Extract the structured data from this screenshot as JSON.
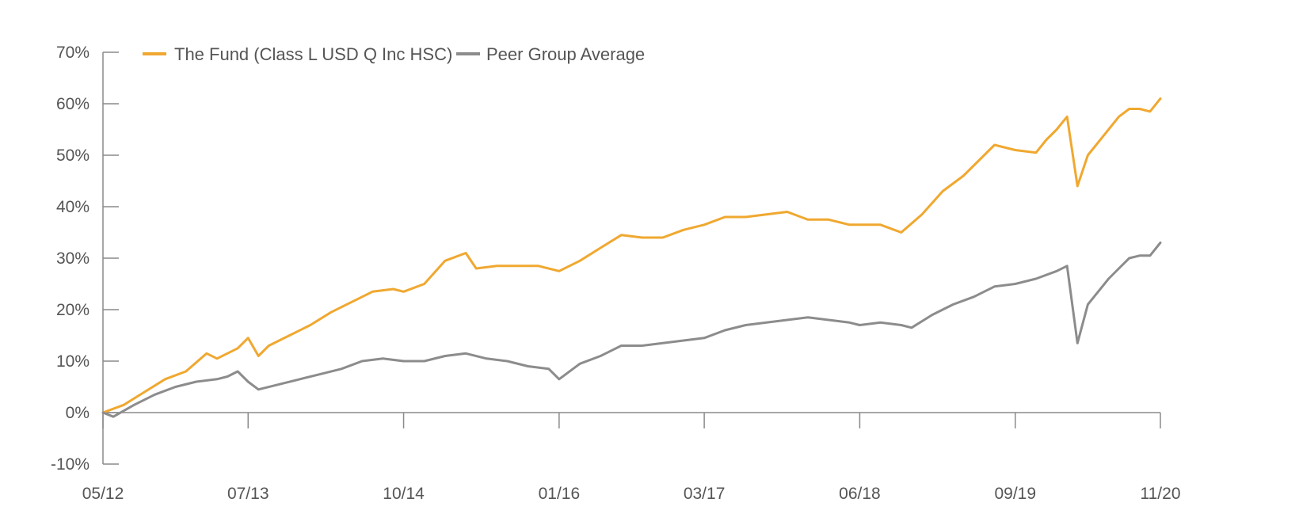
{
  "chart_data": {
    "type": "line",
    "title": "",
    "xlabel": "",
    "ylabel": "",
    "x_range": [
      "05/12",
      "11/20"
    ],
    "ylim": [
      -10,
      70
    ],
    "y_unit": "%",
    "y_ticks": [
      70,
      60,
      50,
      40,
      30,
      20,
      10,
      0,
      -10
    ],
    "y_tick_labels": [
      "70%",
      "60%",
      "50%",
      "40%",
      "30%",
      "20%",
      "10%",
      "0%",
      "-10%"
    ],
    "x_ticks": [
      "05/12",
      "07/13",
      "10/14",
      "01/16",
      "03/17",
      "06/18",
      "09/19",
      "11/20"
    ],
    "grid": false,
    "legend_position": "top-left",
    "series": [
      {
        "name": "The Fund (Class L USD Q Inc HSC)",
        "color": "#f0a830",
        "points": [
          [
            "05/12",
            0
          ],
          [
            "07/12",
            1.5
          ],
          [
            "09/12",
            4
          ],
          [
            "11/12",
            6.5
          ],
          [
            "01/13",
            8
          ],
          [
            "03/13",
            11.5
          ],
          [
            "04/13",
            10.5
          ],
          [
            "06/13",
            12.5
          ],
          [
            "07/13",
            14.5
          ],
          [
            "08/13",
            11
          ],
          [
            "09/13",
            13
          ],
          [
            "11/13",
            15
          ],
          [
            "01/14",
            17
          ],
          [
            "03/14",
            19.5
          ],
          [
            "05/14",
            21.5
          ],
          [
            "07/14",
            23.5
          ],
          [
            "09/14",
            24
          ],
          [
            "10/14",
            23.5
          ],
          [
            "12/14",
            25
          ],
          [
            "02/15",
            29.5
          ],
          [
            "04/15",
            31
          ],
          [
            "05/15",
            28
          ],
          [
            "07/15",
            28.5
          ],
          [
            "09/15",
            28.5
          ],
          [
            "11/15",
            28.5
          ],
          [
            "01/16",
            27.5
          ],
          [
            "03/16",
            29.5
          ],
          [
            "05/16",
            32
          ],
          [
            "07/16",
            34.5
          ],
          [
            "09/16",
            34
          ],
          [
            "11/16",
            34
          ],
          [
            "01/17",
            35.5
          ],
          [
            "03/17",
            36.5
          ],
          [
            "05/17",
            38
          ],
          [
            "07/17",
            38
          ],
          [
            "09/17",
            38.5
          ],
          [
            "11/17",
            39
          ],
          [
            "01/18",
            37.5
          ],
          [
            "03/18",
            37.5
          ],
          [
            "05/18",
            36.5
          ],
          [
            "06/18",
            36.5
          ],
          [
            "08/18",
            36.5
          ],
          [
            "10/18",
            35
          ],
          [
            "12/18",
            38.5
          ],
          [
            "02/19",
            43
          ],
          [
            "04/19",
            46
          ],
          [
            "06/19",
            50
          ],
          [
            "07/19",
            52
          ],
          [
            "09/19",
            51
          ],
          [
            "11/19",
            50.5
          ],
          [
            "12/19",
            53
          ],
          [
            "01/20",
            55
          ],
          [
            "02/20",
            57.5
          ],
          [
            "03/20",
            44
          ],
          [
            "04/20",
            50
          ],
          [
            "06/20",
            55
          ],
          [
            "07/20",
            57.5
          ],
          [
            "08/20",
            59
          ],
          [
            "09/20",
            59
          ],
          [
            "10/20",
            58.5
          ],
          [
            "11/20",
            61
          ]
        ]
      },
      {
        "name": "Peer Group Average",
        "color": "#8c8c8c",
        "points": [
          [
            "05/12",
            0
          ],
          [
            "06/12",
            -0.8
          ],
          [
            "08/12",
            1.5
          ],
          [
            "10/12",
            3.5
          ],
          [
            "12/12",
            5
          ],
          [
            "02/13",
            6
          ],
          [
            "04/13",
            6.5
          ],
          [
            "05/13",
            7
          ],
          [
            "06/13",
            8
          ],
          [
            "07/13",
            6
          ],
          [
            "08/13",
            4.5
          ],
          [
            "10/13",
            5.5
          ],
          [
            "12/13",
            6.5
          ],
          [
            "02/14",
            7.5
          ],
          [
            "04/14",
            8.5
          ],
          [
            "06/14",
            10
          ],
          [
            "08/14",
            10.5
          ],
          [
            "10/14",
            10
          ],
          [
            "12/14",
            10
          ],
          [
            "02/15",
            11
          ],
          [
            "04/15",
            11.5
          ],
          [
            "06/15",
            10.5
          ],
          [
            "08/15",
            10
          ],
          [
            "10/15",
            9
          ],
          [
            "12/15",
            8.5
          ],
          [
            "01/16",
            6.5
          ],
          [
            "03/16",
            9.5
          ],
          [
            "05/16",
            11
          ],
          [
            "07/16",
            13
          ],
          [
            "09/16",
            13
          ],
          [
            "11/16",
            13.5
          ],
          [
            "01/17",
            14
          ],
          [
            "03/17",
            14.5
          ],
          [
            "05/17",
            16
          ],
          [
            "07/17",
            17
          ],
          [
            "09/17",
            17.5
          ],
          [
            "11/17",
            18
          ],
          [
            "01/18",
            18.5
          ],
          [
            "03/18",
            18
          ],
          [
            "05/18",
            17.5
          ],
          [
            "06/18",
            17
          ],
          [
            "08/18",
            17.5
          ],
          [
            "10/18",
            17
          ],
          [
            "11/18",
            16.5
          ],
          [
            "01/19",
            19
          ],
          [
            "03/19",
            21
          ],
          [
            "05/19",
            22.5
          ],
          [
            "07/19",
            24.5
          ],
          [
            "09/19",
            25
          ],
          [
            "11/19",
            26
          ],
          [
            "01/20",
            27.5
          ],
          [
            "02/20",
            28.5
          ],
          [
            "03/20",
            13.5
          ],
          [
            "04/20",
            21
          ],
          [
            "06/20",
            26
          ],
          [
            "07/20",
            28
          ],
          [
            "08/20",
            30
          ],
          [
            "09/20",
            30.5
          ],
          [
            "10/20",
            30.5
          ],
          [
            "11/20",
            33
          ]
        ]
      }
    ]
  }
}
